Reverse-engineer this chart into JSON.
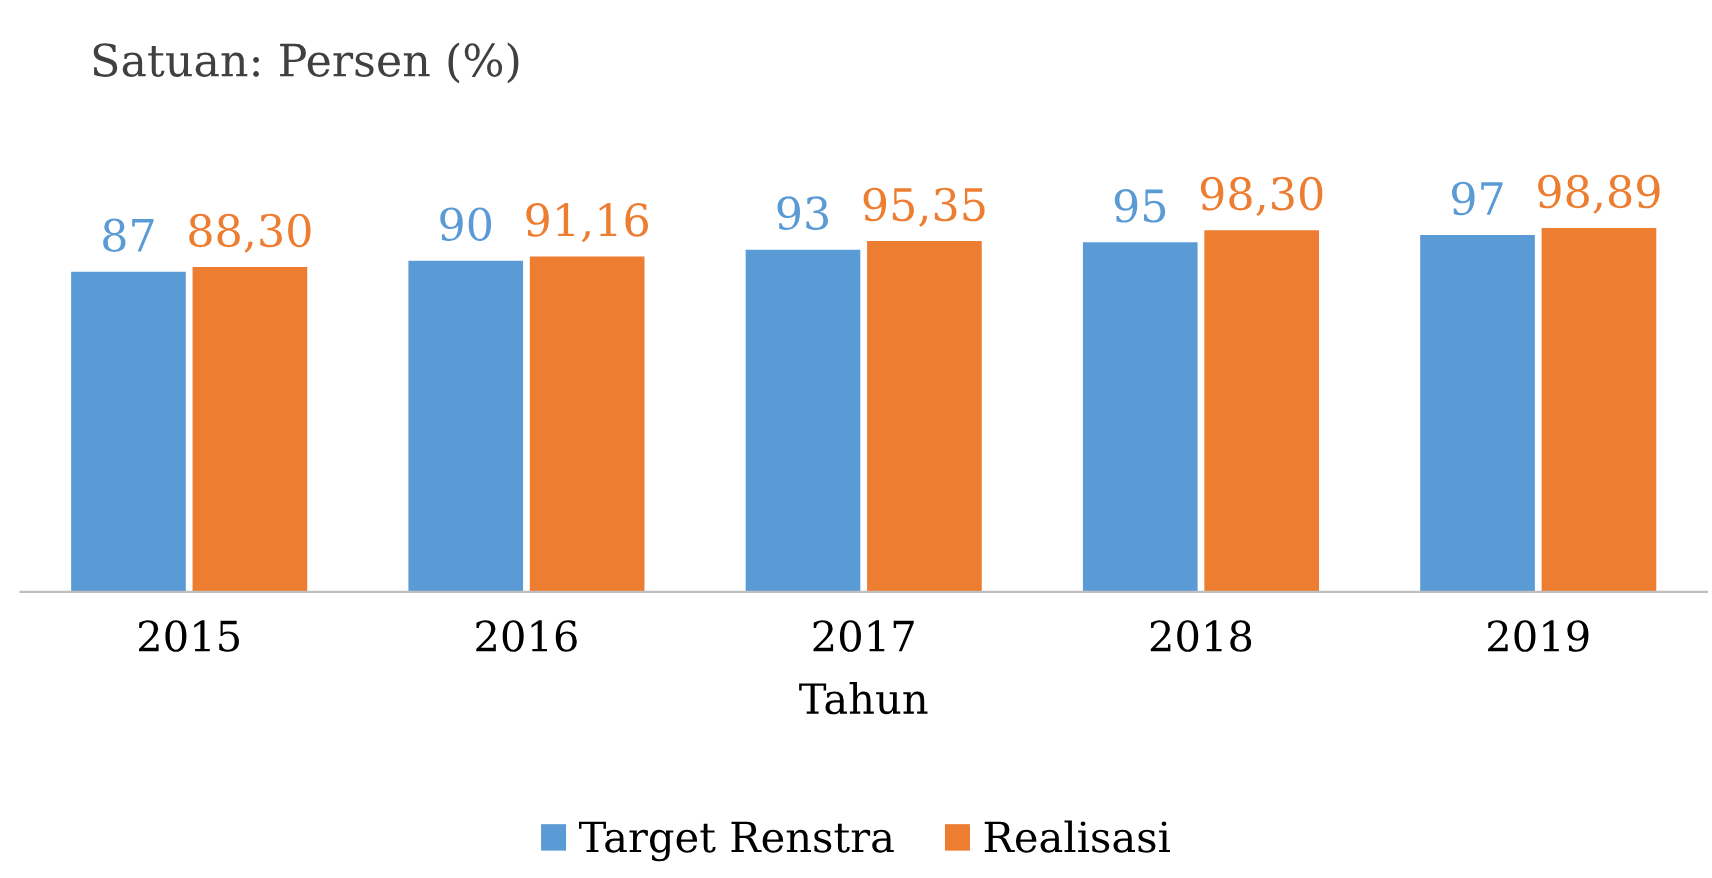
{
  "chart_data": {
    "type": "bar",
    "title": "Satuan: Persen (%)",
    "xlabel": "Tahun",
    "categories": [
      "2015",
      "2016",
      "2017",
      "2018",
      "2019"
    ],
    "series": [
      {
        "name": "Target Renstra",
        "color": "#5b9bd5",
        "values": [
          87,
          90,
          93,
          95,
          97
        ],
        "value_labels": [
          "87",
          "90",
          "93",
          "95",
          "97"
        ]
      },
      {
        "name": "Realisasi",
        "color": "#ed7d31",
        "values": [
          88.3,
          91.16,
          95.35,
          98.3,
          98.89
        ],
        "value_labels": [
          "88,30",
          "91,16",
          "95,35",
          "98,30",
          "98,89"
        ]
      }
    ],
    "grid": false,
    "legend": "bottom"
  }
}
